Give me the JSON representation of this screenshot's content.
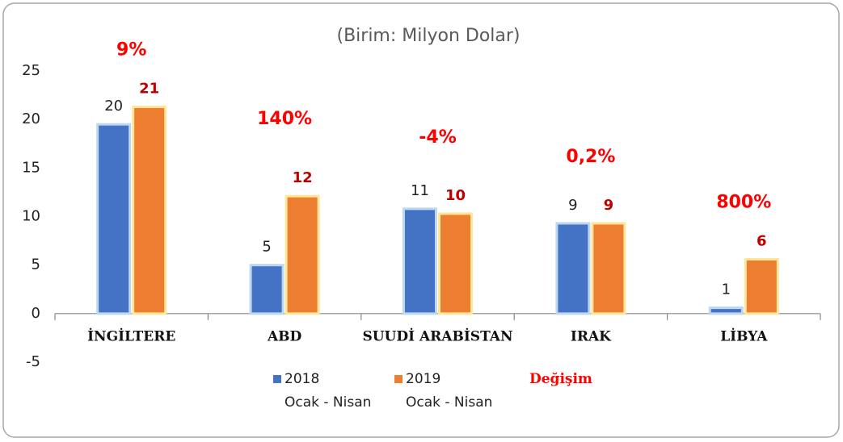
{
  "chart_data": {
    "type": "bar",
    "subtitle": "(Birim: Milyon Dolar)",
    "categories": [
      "İNGİLTERE",
      "ABD",
      "SUUDİ ARABİSTAN",
      "IRAK",
      "LİBYA"
    ],
    "series": [
      {
        "name": "2018\nOcak - Nisan",
        "color": "#4472c4",
        "values": [
          19.5,
          5,
          10.8,
          9.3,
          0.6
        ],
        "value_labels": [
          "20",
          "5",
          "11",
          "9",
          "1"
        ]
      },
      {
        "name": "2019\nOcak - Nisan",
        "color": "#ed7d31",
        "values": [
          21.3,
          12.1,
          10.3,
          9.3,
          5.6
        ],
        "value_labels": [
          "21",
          "12",
          "10",
          "9",
          "6"
        ]
      },
      {
        "name": "Değişim",
        "color": "#ff0000",
        "values": [
          9,
          140,
          -4,
          0.2,
          800
        ],
        "value_labels": [
          "9%",
          "140%",
          "-4%",
          "0,2%",
          "800%"
        ]
      }
    ],
    "ylim": [
      -5,
      25
    ],
    "yticks": [
      -5,
      0,
      5,
      10,
      15,
      20,
      25
    ],
    "grid": false
  }
}
